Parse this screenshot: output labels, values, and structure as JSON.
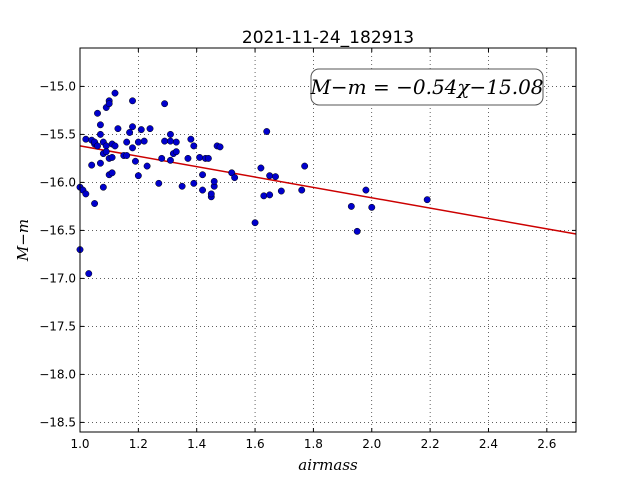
{
  "chart_data": {
    "type": "scatter",
    "title": "2021-11-24_182913",
    "xlabel": "airmass",
    "ylabel": "M−m",
    "xlim": [
      1.0,
      2.7
    ],
    "ylim": [
      -18.6,
      -14.6
    ],
    "y_inverted": true,
    "grid": true,
    "xticks": [
      1.0,
      1.2,
      1.4,
      1.6,
      1.8,
      2.0,
      2.2,
      2.4,
      2.6
    ],
    "xtick_labels": [
      "1.0",
      "1.2",
      "1.4",
      "1.6",
      "1.8",
      "2.0",
      "2.2",
      "2.4",
      "2.6"
    ],
    "yticks": [
      -15.0,
      -15.5,
      -16.0,
      -16.5,
      -17.0,
      -17.5,
      -18.0,
      -18.5
    ],
    "ytick_labels": [
      "−15.0",
      "−15.5",
      "−16.0",
      "−16.5",
      "−17.0",
      "−17.5",
      "−18.0",
      "−18.5"
    ],
    "annotation": "M−m = −0.54χ−15.08",
    "fit": {
      "slope": -0.54,
      "intercept": -15.08,
      "color": "#cc0000"
    },
    "point_color": "#0000cc",
    "points": [
      [
        1.0,
        -16.7
      ],
      [
        1.0,
        -16.05
      ],
      [
        1.01,
        -16.08
      ],
      [
        1.02,
        -15.55
      ],
      [
        1.02,
        -16.12
      ],
      [
        1.03,
        -16.95
      ],
      [
        1.04,
        -15.82
      ],
      [
        1.04,
        -15.56
      ],
      [
        1.05,
        -16.22
      ],
      [
        1.05,
        -15.6
      ],
      [
        1.05,
        -15.58
      ],
      [
        1.06,
        -15.28
      ],
      [
        1.06,
        -15.62
      ],
      [
        1.07,
        -15.4
      ],
      [
        1.07,
        -15.5
      ],
      [
        1.07,
        -15.8
      ],
      [
        1.08,
        -15.58
      ],
      [
        1.08,
        -15.7
      ],
      [
        1.08,
        -16.05
      ],
      [
        1.09,
        -15.22
      ],
      [
        1.09,
        -15.62
      ],
      [
        1.09,
        -15.68
      ],
      [
        1.1,
        -15.15
      ],
      [
        1.1,
        -15.18
      ],
      [
        1.1,
        -15.75
      ],
      [
        1.1,
        -15.92
      ],
      [
        1.11,
        -15.6
      ],
      [
        1.11,
        -15.74
      ],
      [
        1.11,
        -15.9
      ],
      [
        1.12,
        -15.07
      ],
      [
        1.12,
        -15.62
      ],
      [
        1.13,
        -15.44
      ],
      [
        1.15,
        -15.72
      ],
      [
        1.16,
        -15.72
      ],
      [
        1.16,
        -15.58
      ],
      [
        1.17,
        -15.48
      ],
      [
        1.18,
        -15.15
      ],
      [
        1.18,
        -15.42
      ],
      [
        1.18,
        -15.64
      ],
      [
        1.19,
        -15.78
      ],
      [
        1.2,
        -15.93
      ],
      [
        1.2,
        -15.58
      ],
      [
        1.21,
        -15.45
      ],
      [
        1.22,
        -15.57
      ],
      [
        1.23,
        -15.83
      ],
      [
        1.24,
        -15.44
      ],
      [
        1.27,
        -16.01
      ],
      [
        1.28,
        -15.75
      ],
      [
        1.29,
        -15.18
      ],
      [
        1.29,
        -15.57
      ],
      [
        1.31,
        -15.5
      ],
      [
        1.31,
        -15.57
      ],
      [
        1.31,
        -15.77
      ],
      [
        1.32,
        -15.7
      ],
      [
        1.33,
        -15.68
      ],
      [
        1.33,
        -15.58
      ],
      [
        1.35,
        -16.04
      ],
      [
        1.37,
        -15.75
      ],
      [
        1.38,
        -15.55
      ],
      [
        1.39,
        -15.62
      ],
      [
        1.39,
        -16.01
      ],
      [
        1.41,
        -15.74
      ],
      [
        1.42,
        -16.08
      ],
      [
        1.42,
        -15.92
      ],
      [
        1.43,
        -15.75
      ],
      [
        1.44,
        -15.75
      ],
      [
        1.45,
        -16.15
      ],
      [
        1.45,
        -16.12
      ],
      [
        1.46,
        -16.04
      ],
      [
        1.46,
        -15.99
      ],
      [
        1.47,
        -15.62
      ],
      [
        1.48,
        -15.63
      ],
      [
        1.52,
        -15.9
      ],
      [
        1.53,
        -15.95
      ],
      [
        1.6,
        -16.42
      ],
      [
        1.62,
        -15.85
      ],
      [
        1.63,
        -16.14
      ],
      [
        1.64,
        -15.47
      ],
      [
        1.65,
        -16.13
      ],
      [
        1.65,
        -15.93
      ],
      [
        1.67,
        -15.94
      ],
      [
        1.69,
        -16.09
      ],
      [
        1.76,
        -16.08
      ],
      [
        1.77,
        -15.83
      ],
      [
        1.93,
        -16.25
      ],
      [
        1.95,
        -16.51
      ],
      [
        1.98,
        -16.08
      ],
      [
        2.0,
        -16.26
      ],
      [
        2.19,
        -16.18
      ]
    ]
  }
}
